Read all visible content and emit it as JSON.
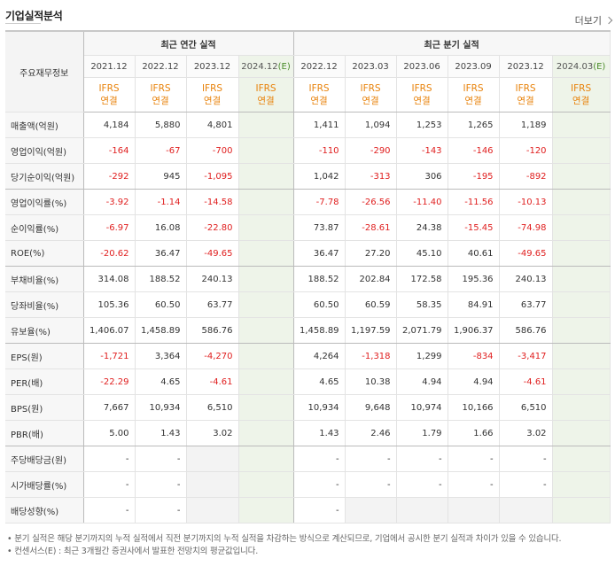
{
  "header": {
    "title": "기업실적분석",
    "more_label": "더보기"
  },
  "table": {
    "row_header": "주요재무정보",
    "annual_group": "최근 연간 실적",
    "quarter_group": "최근 분기 실적",
    "annual_years": [
      "2021.12",
      "2022.12",
      "2023.12",
      "2024.12(E)"
    ],
    "quarter_years": [
      "2022.12",
      "2023.03",
      "2023.06",
      "2023.09",
      "2023.12",
      "2024.03(E)"
    ],
    "ifrs_label": "IFRS",
    "consolidated_label": "연결",
    "rows": [
      {
        "label": "매출액(억원)",
        "annual": [
          "4,184",
          "5,880",
          "4,801",
          ""
        ],
        "quarter": [
          "1,411",
          "1,094",
          "1,253",
          "1,265",
          "1,189",
          ""
        ]
      },
      {
        "label": "영업이익(억원)",
        "annual": [
          "-164",
          "-67",
          "-700",
          ""
        ],
        "quarter": [
          "-110",
          "-290",
          "-143",
          "-146",
          "-120",
          ""
        ]
      },
      {
        "label": "당기순이익(억원)",
        "annual": [
          "-292",
          "945",
          "-1,095",
          ""
        ],
        "quarter": [
          "1,042",
          "-313",
          "306",
          "-195",
          "-892",
          ""
        ]
      },
      {
        "label": "영업이익률(%)",
        "annual": [
          "-3.92",
          "-1.14",
          "-14.58",
          ""
        ],
        "quarter": [
          "-7.78",
          "-26.56",
          "-11.40",
          "-11.56",
          "-10.13",
          ""
        ]
      },
      {
        "label": "순이익률(%)",
        "annual": [
          "-6.97",
          "16.08",
          "-22.80",
          ""
        ],
        "quarter": [
          "73.87",
          "-28.61",
          "24.38",
          "-15.45",
          "-74.98",
          ""
        ]
      },
      {
        "label": "ROE(%)",
        "annual": [
          "-20.62",
          "36.47",
          "-49.65",
          ""
        ],
        "quarter": [
          "36.47",
          "27.20",
          "45.10",
          "40.61",
          "-49.65",
          ""
        ]
      },
      {
        "label": "부채비율(%)",
        "annual": [
          "314.08",
          "188.52",
          "240.13",
          ""
        ],
        "quarter": [
          "188.52",
          "202.84",
          "172.58",
          "195.36",
          "240.13",
          ""
        ]
      },
      {
        "label": "당좌비율(%)",
        "annual": [
          "105.36",
          "60.50",
          "63.77",
          ""
        ],
        "quarter": [
          "60.50",
          "60.59",
          "58.35",
          "84.91",
          "63.77",
          ""
        ]
      },
      {
        "label": "유보율(%)",
        "annual": [
          "1,406.07",
          "1,458.89",
          "586.76",
          ""
        ],
        "quarter": [
          "1,458.89",
          "1,197.59",
          "2,071.79",
          "1,906.37",
          "586.76",
          ""
        ]
      },
      {
        "label": "EPS(원)",
        "annual": [
          "-1,721",
          "3,364",
          "-4,270",
          ""
        ],
        "quarter": [
          "4,264",
          "-1,318",
          "1,299",
          "-834",
          "-3,417",
          ""
        ]
      },
      {
        "label": "PER(배)",
        "annual": [
          "-22.29",
          "4.65",
          "-4.61",
          ""
        ],
        "quarter": [
          "4.65",
          "10.38",
          "4.94",
          "4.94",
          "-4.61",
          ""
        ]
      },
      {
        "label": "BPS(원)",
        "annual": [
          "7,667",
          "10,934",
          "6,510",
          ""
        ],
        "quarter": [
          "10,934",
          "9,648",
          "10,974",
          "10,166",
          "6,510",
          ""
        ]
      },
      {
        "label": "PBR(배)",
        "annual": [
          "5.00",
          "1.43",
          "3.02",
          ""
        ],
        "quarter": [
          "1.43",
          "2.46",
          "1.79",
          "1.66",
          "3.02",
          ""
        ]
      },
      {
        "label": "주당배당금(원)",
        "annual": [
          "-",
          "-",
          "",
          ""
        ],
        "quarter": [
          "-",
          "-",
          "-",
          "-",
          "-",
          ""
        ]
      },
      {
        "label": "시가배당률(%)",
        "annual": [
          "-",
          "-",
          "",
          ""
        ],
        "quarter": [
          "-",
          "-",
          "-",
          "-",
          "-",
          ""
        ]
      },
      {
        "label": "배당성향(%)",
        "annual": [
          "-",
          "-",
          "",
          ""
        ],
        "quarter": [
          "-",
          "",
          "",
          "",
          "",
          ""
        ]
      }
    ]
  },
  "notes": [
    "분기 실적은 해당 분기까지의 누적 실적에서 직전 분기까지의 누적 실적을 차감하는 방식으로 계산되므로, 기업에서 공시한 분기 실적과 차이가 있을 수 있습니다.",
    "컨센서스(E) : 최근 3개월간 증권사에서 발표한 전망치의 평균값입니다."
  ]
}
